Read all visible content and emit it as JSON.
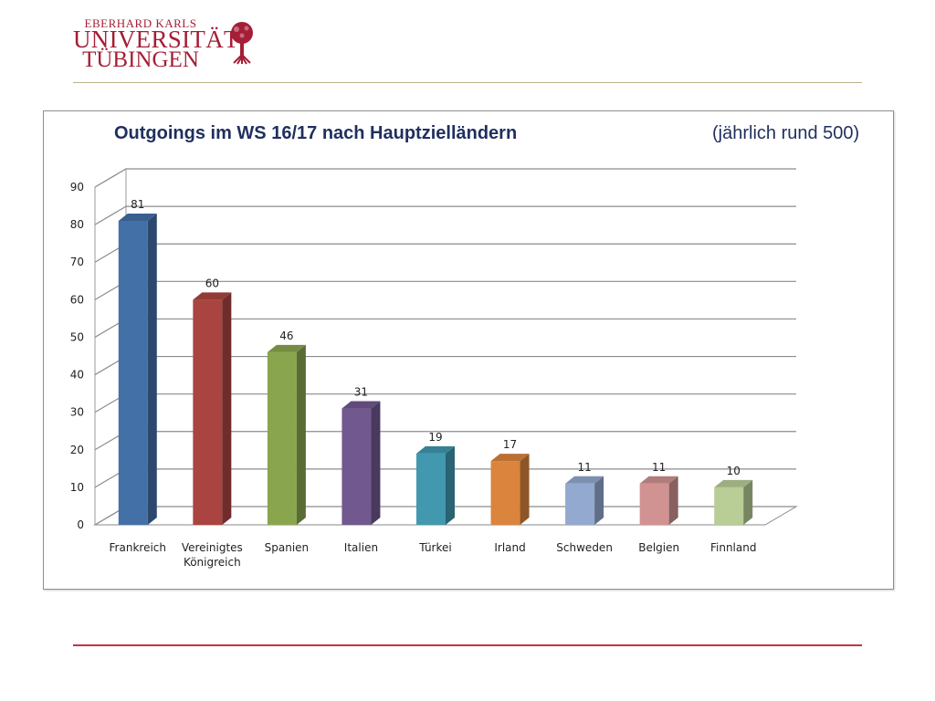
{
  "logo": {
    "line1": "EBERHARD KARLS",
    "line2": "UNIVERSITÄT",
    "line3": "TÜBINGEN",
    "icon": "tree-seal-icon",
    "color": "#a51e36"
  },
  "chart_data": {
    "type": "bar",
    "title": "Outgoings im WS 16/17 nach Hauptzielländern",
    "subtitle": "(jährlich rund 500)",
    "categories": [
      "Frankreich",
      "Vereinigtes Königreich",
      "Spanien",
      "Italien",
      "Türkei",
      "Irland",
      "Schweden",
      "Belgien",
      "Finnland"
    ],
    "category_lines": [
      [
        "Frankreich"
      ],
      [
        "Vereinigtes",
        "Königreich"
      ],
      [
        "Spanien"
      ],
      [
        "Italien"
      ],
      [
        "Türkei"
      ],
      [
        "Irland"
      ],
      [
        "Schweden"
      ],
      [
        "Belgien"
      ],
      [
        "Finnland"
      ]
    ],
    "values": [
      81,
      60,
      46,
      31,
      19,
      17,
      11,
      11,
      10
    ],
    "colors": [
      "#4470a8",
      "#aa4440",
      "#89a64e",
      "#71588f",
      "#4198af",
      "#db843d",
      "#93a9cf",
      "#d09392",
      "#b9cd96"
    ],
    "ylim": [
      0,
      90
    ],
    "yticks": [
      0,
      10,
      20,
      30,
      40,
      50,
      60,
      70,
      80,
      90
    ],
    "grid": true,
    "three_d": true,
    "legend": "none"
  }
}
